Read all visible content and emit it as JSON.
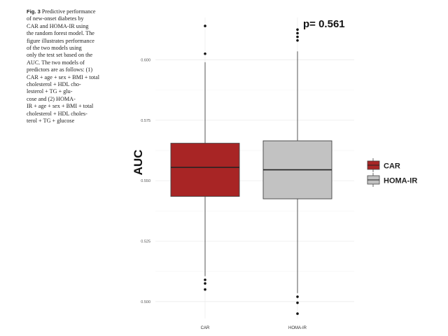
{
  "caption": {
    "label": "Fig. 3",
    "lines": [
      "Predictive performance",
      "of new-onset diabetes by",
      "CAR and HOMA-IR using",
      "the random forest model. The",
      "figure illustrates performance",
      "of the two models using",
      "only the test set based on the",
      "AUC. The two models of",
      "predictors are as follows: (1)",
      "CAR + age + sex + BMI + total",
      "cholesterol + HDL cho-",
      "lesterol + TG + glu-",
      "cose and (2) HOMA-",
      "IR + age + sex + BMI + total",
      "cholesterol + HDL choles-",
      "terol + TG + glucose"
    ]
  },
  "chart_data": {
    "type": "boxplot",
    "ylabel": "AUC",
    "xlabel": "",
    "ylim": [
      0.493,
      0.6175
    ],
    "yticks": [
      0.5,
      0.525,
      0.55,
      0.575,
      0.6
    ],
    "ytick_labels": [
      "0.500",
      "0.525",
      "0.550",
      "0.575",
      "0.600"
    ],
    "categories": [
      "CAR",
      "HOMA-IR"
    ],
    "annotation": "p= 0.561",
    "grid": true,
    "legend": {
      "placement": "right",
      "entries": [
        "CAR",
        "HOMA-IR"
      ]
    },
    "boxes": [
      {
        "name": "CAR",
        "color": "#a82525",
        "whisker_low": 0.5105,
        "q1": 0.5435,
        "median": 0.5555,
        "q3": 0.5655,
        "whisker_high": 0.599,
        "outliers": [
          0.614,
          0.6025,
          0.509,
          0.5075,
          0.505
        ]
      },
      {
        "name": "HOMA-IR",
        "color": "#c2c2c2",
        "whisker_low": 0.5035,
        "q1": 0.5425,
        "median": 0.5545,
        "q3": 0.5665,
        "whisker_high": 0.6035,
        "outliers": [
          0.6125,
          0.611,
          0.6095,
          0.608,
          0.502,
          0.4995,
          0.495
        ]
      }
    ]
  }
}
